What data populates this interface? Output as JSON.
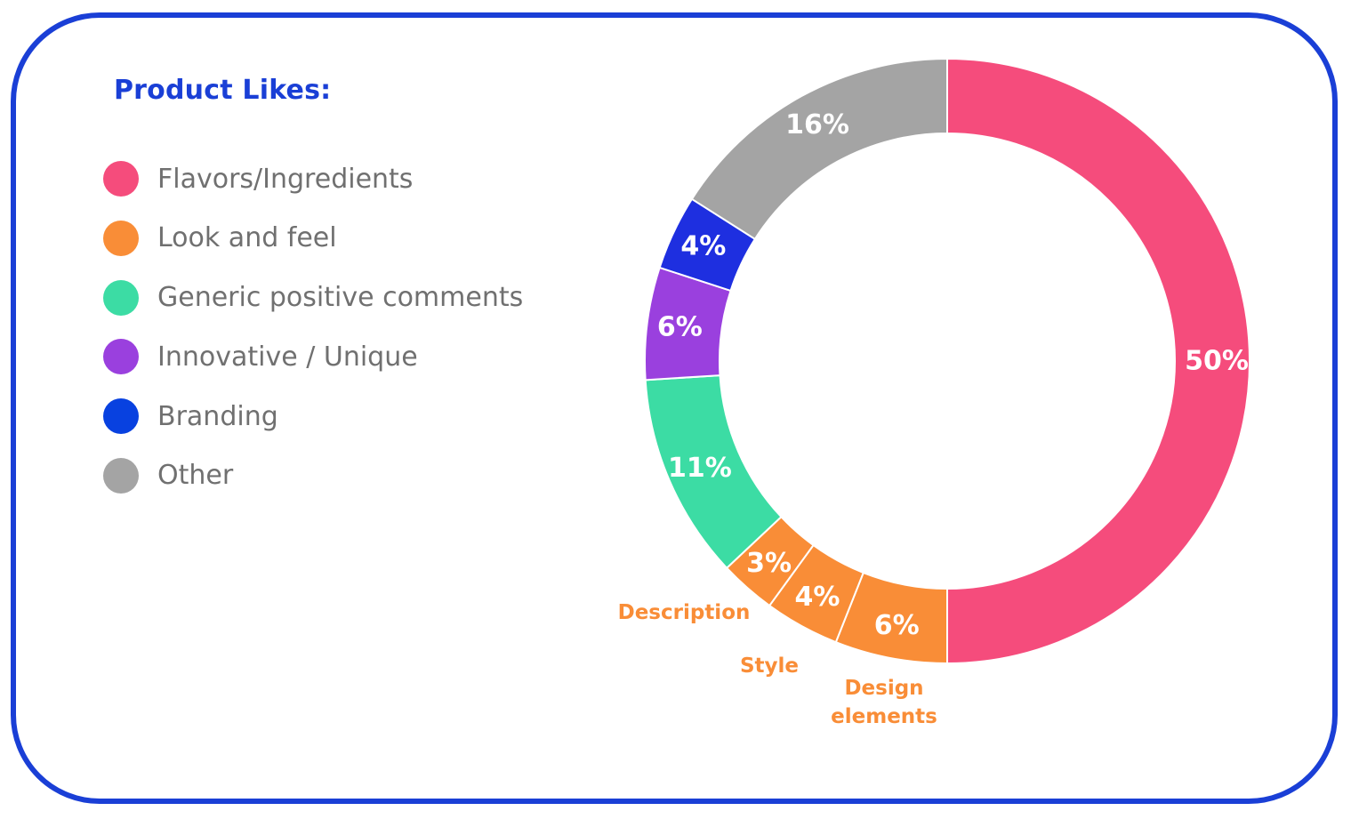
{
  "chart_data": {
    "type": "pie",
    "style": "donut",
    "title": "Product Likes:",
    "legend": [
      {
        "label": "Flavors/Ingredients",
        "color": "#f54c7c"
      },
      {
        "label": "Look and feel",
        "color": "#f98d37"
      },
      {
        "label": "Generic positive comments",
        "color": "#3cdca4"
      },
      {
        "label": "Innovative / Unique",
        "color": "#9a40de"
      },
      {
        "label": "Branding",
        "color": "#0841e0"
      },
      {
        "label": "Other",
        "color": "#a4a4a4"
      }
    ],
    "slices": [
      {
        "category": "Flavors/Ingredients",
        "value": 50,
        "label": "50%",
        "color": "#f54c7c"
      },
      {
        "category": "Look and feel",
        "sublabel": "Design elements",
        "value": 6,
        "label": "6%",
        "color": "#f98d37"
      },
      {
        "category": "Look and feel",
        "sublabel": "Style",
        "value": 4,
        "label": "4%",
        "color": "#f98d37"
      },
      {
        "category": "Look and feel",
        "sublabel": "Description",
        "value": 3,
        "label": "3%",
        "color": "#f98d37"
      },
      {
        "category": "Generic positive comments",
        "value": 11,
        "label": "11%",
        "color": "#3cdca4"
      },
      {
        "category": "Innovative / Unique",
        "value": 6,
        "label": "6%",
        "color": "#9a40de"
      },
      {
        "category": "Branding",
        "value": 4,
        "label": "4%",
        "color": "#1e2fe0"
      },
      {
        "category": "Other",
        "value": 16,
        "label": "16%",
        "color": "#a4a4a4"
      }
    ],
    "callouts": [
      {
        "text": [
          "Description"
        ],
        "color": "#f98d37"
      },
      {
        "text": [
          "Style"
        ],
        "color": "#f98d37"
      },
      {
        "text": [
          "Design",
          "elements"
        ],
        "color": "#f98d37"
      }
    ]
  }
}
